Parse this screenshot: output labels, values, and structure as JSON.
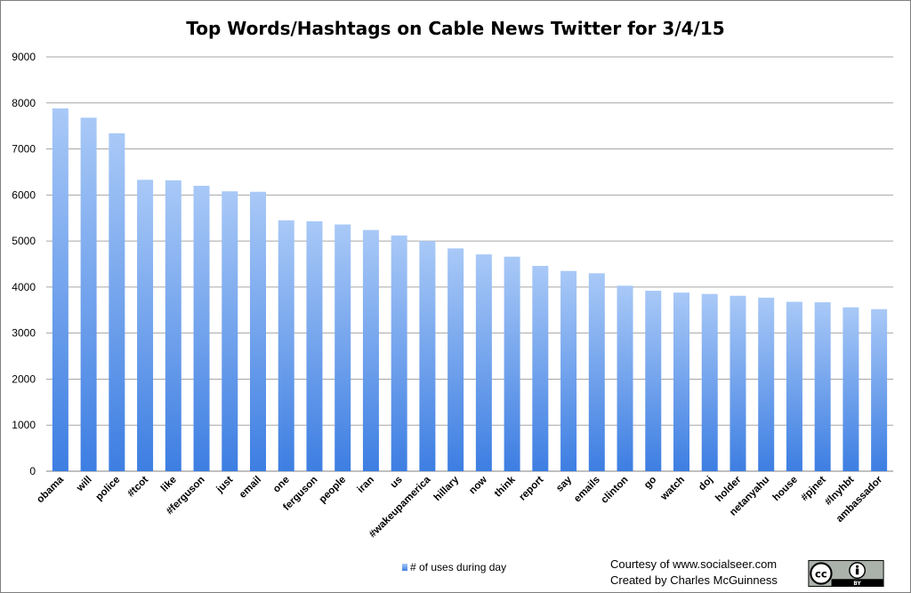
{
  "chart_data": {
    "type": "bar",
    "title": "Top Words/Hashtags on Cable News Twitter for 3/4/15",
    "categories": [
      "obama",
      "will",
      "police",
      "#tcot",
      "like",
      "#ferguson",
      "just",
      "email",
      "one",
      "ferguson",
      "people",
      "iran",
      "us",
      "#wakeupamerica",
      "hillary",
      "now",
      "think",
      "report",
      "say",
      "emails",
      "clinton",
      "go",
      "watch",
      "doj",
      "holder",
      "netanyahu",
      "house",
      "#pjnet",
      "#lnyhbt",
      "ambassador"
    ],
    "series": [
      {
        "name": "# of uses during day",
        "values": [
          7880,
          7680,
          7340,
          6330,
          6320,
          6200,
          6080,
          6070,
          5450,
          5430,
          5360,
          5240,
          5120,
          5000,
          4840,
          4710,
          4660,
          4460,
          4350,
          4300,
          4030,
          3920,
          3880,
          3850,
          3810,
          3770,
          3680,
          3670,
          3560,
          3520
        ]
      }
    ],
    "xlabel": "",
    "ylabel": "",
    "ylim": [
      0,
      9000
    ],
    "yticks": [
      0,
      1000,
      2000,
      3000,
      4000,
      5000,
      6000,
      7000,
      8000,
      9000
    ],
    "grid": true,
    "legend_position": "bottom",
    "bar_color_top": "#a9c9f7",
    "bar_color_bottom": "#3d7ee2",
    "grid_color": "#a6a6a6"
  },
  "credits": {
    "line1": "Courtesy of www.socialseer.com",
    "line2": "Created by Charles McGuinness"
  },
  "license_badge": {
    "icon": "creative-commons-by-icon",
    "cc_text": "cc",
    "by_text": "BY"
  }
}
